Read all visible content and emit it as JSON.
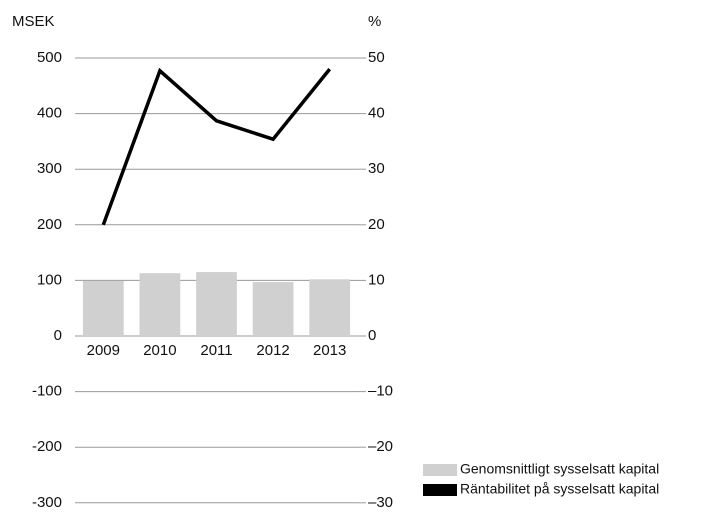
{
  "chart_data": {
    "type": "bar_line",
    "y_label": "MSEK",
    "y2_label": "%",
    "categories": [
      "2009",
      "2010",
      "2011",
      "2012",
      "2013"
    ],
    "series": [
      {
        "name": "Genomsnittligt sysselsatt kapital",
        "type": "bar",
        "color": "#d0d0d0",
        "values": [
          99,
          113,
          115,
          97,
          102
        ]
      },
      {
        "name": "Räntabilitet på sysselsatt kapital",
        "type": "line",
        "axis": "y2",
        "color": "#000000",
        "values": [
          20,
          47.7,
          38.7,
          35.4,
          48
        ]
      }
    ],
    "ylim": [
      -300,
      500
    ],
    "yticks": [
      -300,
      -200,
      -100,
      0,
      100,
      200,
      300,
      400,
      500
    ],
    "y2lim": [
      -30,
      50
    ],
    "y2ticks": [
      {
        "value": -30,
        "label": "–30"
      },
      {
        "value": -20,
        "label": "–20"
      },
      {
        "value": -10,
        "label": "–10"
      },
      0,
      10,
      20,
      30,
      40,
      50
    ],
    "grid": true
  }
}
